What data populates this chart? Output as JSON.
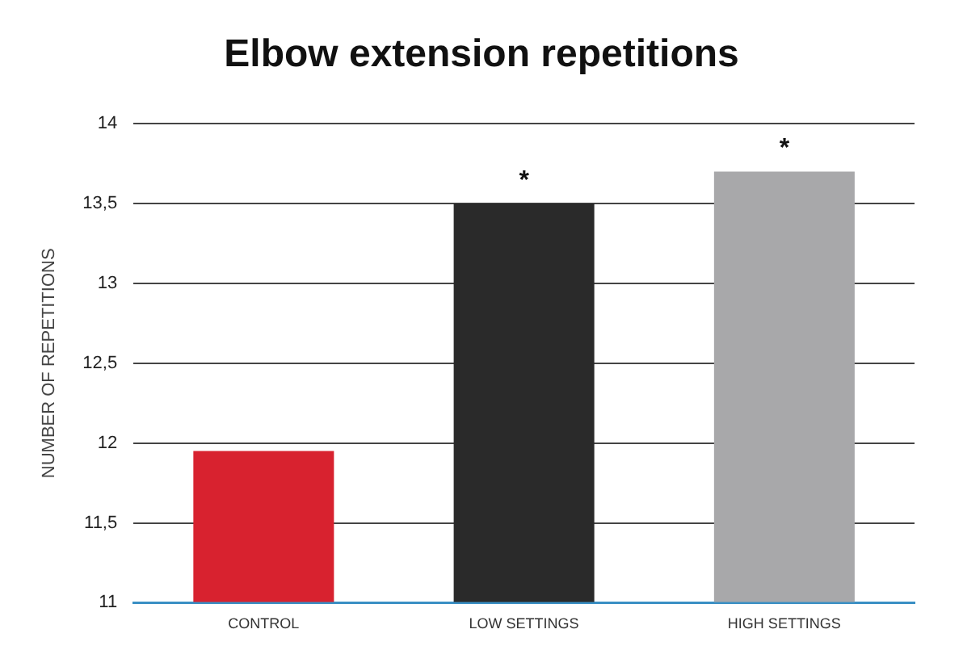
{
  "chart_data": {
    "type": "bar",
    "title": "Elbow extension repetitions",
    "ylabel": "NUMBER OF REPETITIONS",
    "categories": [
      "CONTROL",
      "LOW SETTINGS",
      "HIGH SETTINGS"
    ],
    "values": [
      11.95,
      13.5,
      13.7
    ],
    "colors": [
      "#d8222f",
      "#2a2a2a",
      "#a8a8aa"
    ],
    "ylim": [
      11,
      14
    ],
    "yticks": [
      11,
      {
        "value": 11.5,
        "label": "11,5"
      },
      12,
      {
        "value": 12.5,
        "label": "12,5"
      },
      13,
      {
        "value": 13.5,
        "label": "13,5"
      },
      14
    ],
    "grid": "y",
    "annotations": [
      {
        "text": "*",
        "x": "LOW SETTINGS",
        "y": 13.5
      },
      {
        "text": "*",
        "x": "HIGH SETTINGS",
        "y": 13.7
      }
    ]
  }
}
